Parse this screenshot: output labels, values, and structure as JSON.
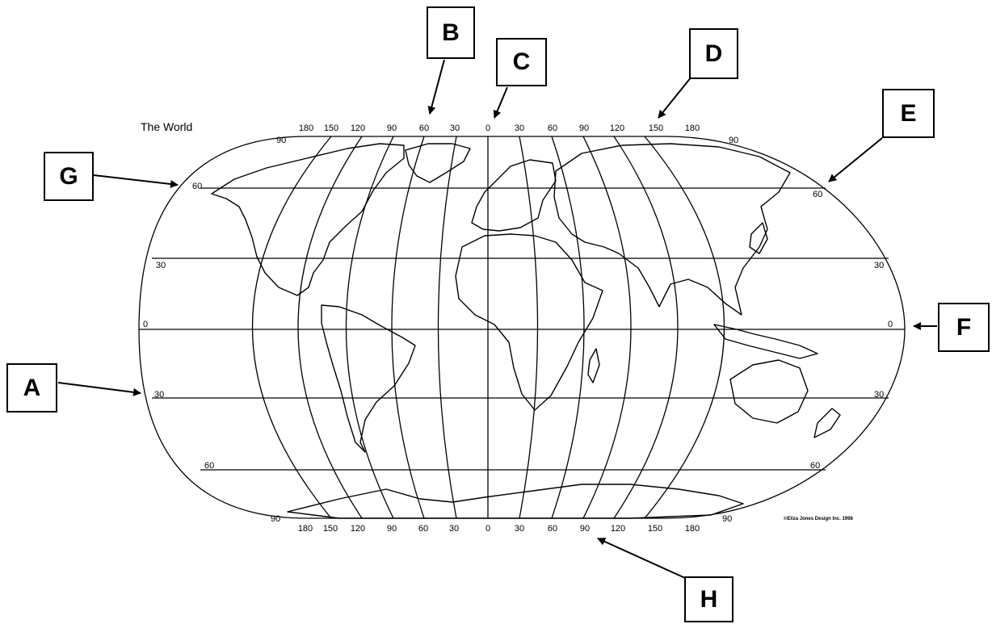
{
  "map": {
    "title": "The World",
    "copyright": "©Eliza Jones Design Inc. 1998",
    "top_longitude_labels": [
      "180",
      "150",
      "120",
      "90",
      "60",
      "30",
      "0",
      "30",
      "60",
      "90",
      "120",
      "150",
      "180"
    ],
    "bottom_longitude_labels": [
      "180",
      "150",
      "120",
      "90",
      "60",
      "30",
      "0",
      "30",
      "60",
      "90",
      "120",
      "150",
      "180"
    ],
    "latitude_labels": {
      "north_90": "90",
      "north_60": "60",
      "north_30": "30",
      "equator": "0",
      "south_30": "30",
      "south_60": "60",
      "south_90": "90"
    }
  },
  "question_labels": {
    "A": "A",
    "B": "B",
    "C": "C",
    "D": "D",
    "E": "E",
    "F": "F",
    "G": "G",
    "H": "H"
  },
  "colors": {
    "ink": "#000000",
    "background": "#ffffff"
  }
}
